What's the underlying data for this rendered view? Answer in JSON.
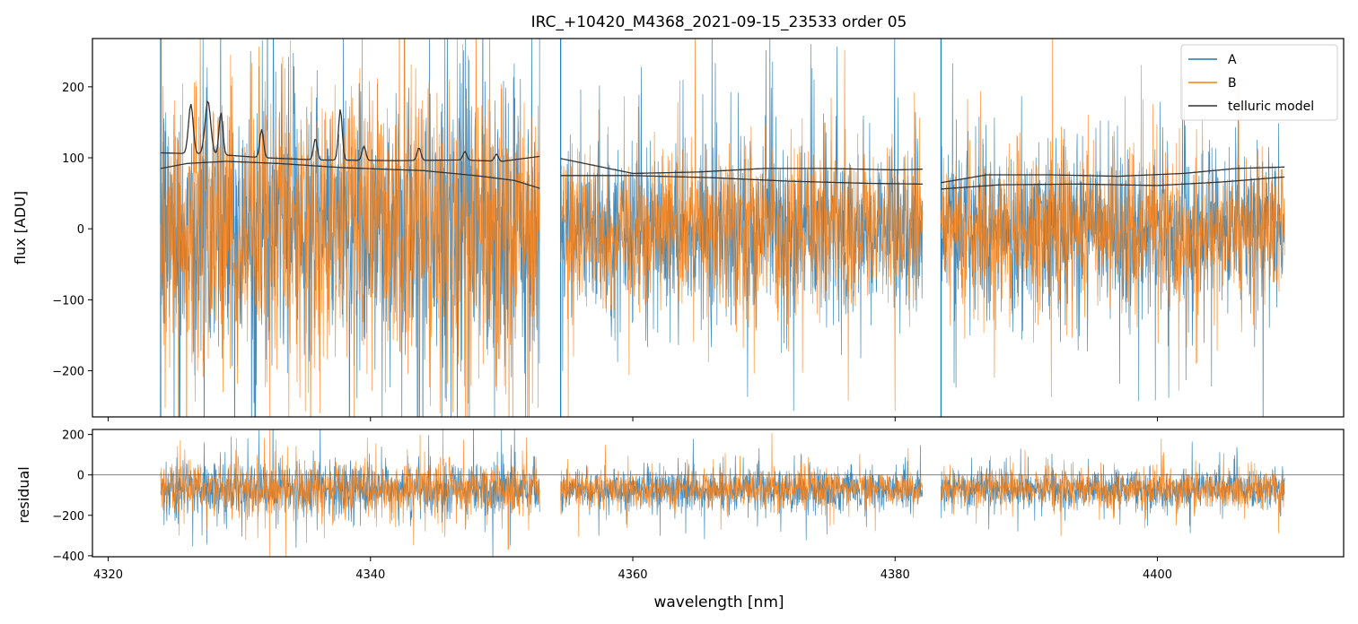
{
  "title": "IRC_+10420_M4368_2021-09-15_23533  order 05",
  "colors": {
    "A": "#1f77b4",
    "B": "#ff7f0e",
    "telluric": "#333333",
    "axis": "#000000"
  },
  "legend": {
    "placement": "top-right",
    "entries": [
      "A",
      "B",
      "telluric model"
    ]
  },
  "chart_data": [
    {
      "type": "line",
      "panel": "flux",
      "ylabel": "flux [ADU]",
      "xlim": [
        4318.8,
        4414.2
      ],
      "ylim": [
        -265,
        268
      ],
      "yticks": [
        -200,
        -100,
        0,
        100,
        200
      ],
      "xticks": [
        4320,
        4340,
        4360,
        4380,
        4400
      ],
      "segments": [
        [
          4324.0,
          4352.9
        ],
        [
          4354.5,
          4382.1
        ],
        [
          4383.5,
          4409.7
        ]
      ],
      "series": [
        {
          "name": "A",
          "kind": "noisy-spectrum",
          "center": 0,
          "noise_scale": [
            95,
            60,
            55
          ],
          "segment_peak": [
            350,
            260,
            250
          ]
        },
        {
          "name": "B",
          "kind": "noisy-spectrum",
          "center": 0,
          "noise_scale": [
            100,
            55,
            50
          ],
          "segment_peak": [
            360,
            240,
            230
          ]
        },
        {
          "name": "telluric model",
          "lines": [
            {
              "x": [
                4324.0,
                4326.0,
                4329.0,
                4333.0,
                4338.0,
                4344.0,
                4348.0,
                4351.0,
                4352.9
              ],
              "y": [
                85,
                92,
                95,
                92,
                86,
                82,
                75,
                68,
                57
              ]
            },
            {
              "x": [
                4324.0,
                4328.0,
                4332.0,
                4336.0,
                4342.0,
                4347.0,
                4350.0,
                4352.9
              ],
              "y": [
                107,
                105,
                100,
                97,
                96,
                97,
                95,
                102
              ]
            },
            {
              "x": [
                4354.5,
                4360.0,
                4366.0,
                4372.0,
                4378.0,
                4382.1
              ],
              "y": [
                75,
                75,
                72,
                67,
                64,
                63
              ]
            },
            {
              "x": [
                4354.5,
                4360.0,
                4365.0,
                4370.0,
                4375.0,
                4380.0,
                4382.1
              ],
              "y": [
                99,
                78,
                80,
                85,
                85,
                83,
                84
              ]
            },
            {
              "x": [
                4383.5,
                4388.0,
                4394.0,
                4400.0,
                4405.0,
                4409.7
              ],
              "y": [
                56,
                62,
                63,
                61,
                66,
                73
              ]
            },
            {
              "x": [
                4383.5,
                4387.0,
                4392.0,
                4397.0,
                4402.0,
                4406.0,
                4409.7
              ],
              "y": [
                65,
                76,
                76,
                74,
                78,
                85,
                87
              ]
            }
          ],
          "absorption_peaks": [
            {
              "x": 4326.3,
              "height": 70,
              "width": 0.25
            },
            {
              "x": 4327.6,
              "height": 75,
              "width": 0.3
            },
            {
              "x": 4328.6,
              "height": 60,
              "width": 0.2
            },
            {
              "x": 4331.7,
              "height": 40,
              "width": 0.2
            },
            {
              "x": 4335.8,
              "height": 30,
              "width": 0.2
            },
            {
              "x": 4337.7,
              "height": 72,
              "width": 0.2
            },
            {
              "x": 4339.5,
              "height": 20,
              "width": 0.2
            },
            {
              "x": 4343.7,
              "height": 18,
              "width": 0.2
            },
            {
              "x": 4347.2,
              "height": 12,
              "width": 0.2
            },
            {
              "x": 4349.6,
              "height": 10,
              "width": 0.2
            }
          ]
        }
      ]
    },
    {
      "type": "line",
      "panel": "residual",
      "ylabel": "residual",
      "xlabel": "wavelength [nm]",
      "xlim": [
        4318.8,
        4414.2
      ],
      "ylim": [
        -405,
        225
      ],
      "yticks": [
        -400,
        -200,
        0,
        200
      ],
      "xticks": [
        4320,
        4340,
        4360,
        4380,
        4400
      ],
      "zero_line": 0,
      "segments": [
        [
          4324.0,
          4352.9
        ],
        [
          4354.5,
          4382.1
        ],
        [
          4383.5,
          4409.7
        ]
      ],
      "series": [
        {
          "name": "A",
          "center": -70,
          "noise_scale": [
            65,
            50,
            48
          ]
        },
        {
          "name": "B",
          "center": -70,
          "noise_scale": [
            70,
            45,
            45
          ]
        }
      ]
    }
  ],
  "tick_labels": {
    "flux_y": [
      "−200",
      "−100",
      "0",
      "100",
      "200"
    ],
    "resid_y": [
      "−400",
      "−200",
      "0",
      "200"
    ],
    "x": [
      "4320",
      "4340",
      "4360",
      "4380",
      "4400"
    ]
  }
}
